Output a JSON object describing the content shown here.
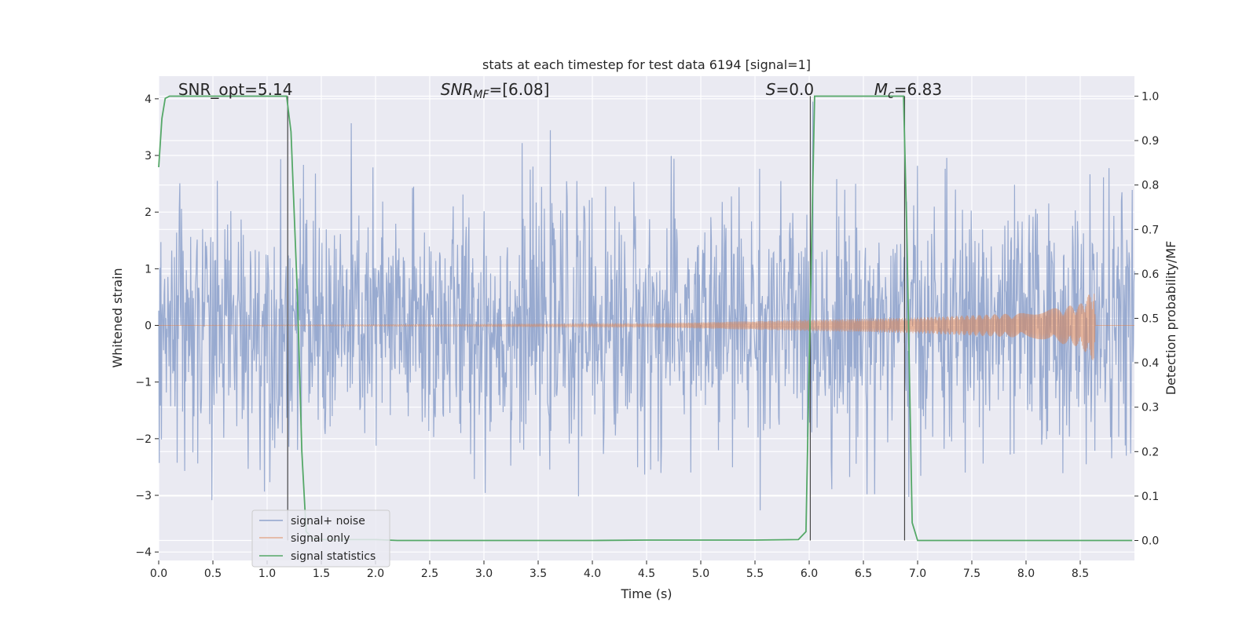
{
  "chart_data": {
    "type": "line",
    "title": "stats at each timestep for test data 6194 [signal=1]",
    "xlabel": "Time (s)",
    "ylabel": "Whitened strain",
    "ylabel_right": "Detection probability/MF",
    "xlim": [
      0.0,
      9.0
    ],
    "ylim": [
      -4.15,
      4.4
    ],
    "ylim_right": [
      -0.045,
      1.045
    ],
    "x_ticks": [
      "0.0",
      "0.5",
      "1.0",
      "1.5",
      "2.0",
      "2.5",
      "3.0",
      "3.5",
      "4.0",
      "4.5",
      "5.0",
      "5.5",
      "6.0",
      "6.5",
      "7.0",
      "7.5",
      "8.0",
      "8.5"
    ],
    "y_ticks": [
      "4",
      "3",
      "2",
      "1",
      "0",
      "−1",
      "−2",
      "−3",
      "−4"
    ],
    "y_ticks_right": [
      "1.0",
      "0.9",
      "0.8",
      "0.7",
      "0.6",
      "0.5",
      "0.4",
      "0.3",
      "0.2",
      "0.1",
      "0.0"
    ],
    "annotations": [
      {
        "label": "SNR_opt=5.14",
        "x": 0.18,
        "y": 4.12
      },
      {
        "label": "SNR_MF=[6.08]",
        "x": 2.6,
        "y": 4.12
      },
      {
        "label": "S=0.0",
        "x": 5.6,
        "y": 4.12
      },
      {
        "label": "M_c=6.83",
        "x": 6.6,
        "y": 4.12
      }
    ],
    "vertical_lines": [
      1.19,
      6.01,
      6.88
    ],
    "series": [
      {
        "name": "signal+ noise",
        "color": "#8fa3cc",
        "description": "whitened noisy strain, ~N(0,1), sampled densely over 0–9 s",
        "amplitude_typical": 1.0
      },
      {
        "name": "signal only",
        "color": "#dd8452",
        "description": "chirp waveform growing from ~0.05 amplitude at 4.5 s to ~0.65 at 8.63 s, zero afterward",
        "envelope": {
          "x": [
            0.0,
            4.5,
            6.0,
            7.0,
            8.0,
            8.5,
            8.63,
            8.64
          ],
          "amplitude": [
            0.0,
            0.03,
            0.1,
            0.14,
            0.22,
            0.38,
            0.65,
            0.0
          ]
        }
      },
      {
        "name": "signal statistics",
        "color": "#55a868",
        "axis": "right",
        "x": [
          0.0,
          0.03,
          0.06,
          0.1,
          0.5,
          1.0,
          1.18,
          1.22,
          1.28,
          1.32,
          1.36,
          1.42,
          1.5,
          2.0,
          2.2,
          3.0,
          4.0,
          4.5,
          5.0,
          5.5,
          5.9,
          5.97,
          6.0,
          6.05,
          6.5,
          6.87,
          6.9,
          6.95,
          7.0,
          7.5,
          8.0,
          8.5,
          8.98
        ],
        "y": [
          0.84,
          0.95,
          0.995,
          1.0,
          1.0,
          1.0,
          1.0,
          0.92,
          0.55,
          0.2,
          0.02,
          0.005,
          0.002,
          0.002,
          0.0,
          0.0,
          0.0,
          0.001,
          0.001,
          0.001,
          0.002,
          0.02,
          0.4,
          1.0,
          1.0,
          1.0,
          0.7,
          0.04,
          0.0,
          0.0,
          0.0,
          0.0,
          0.0
        ]
      }
    ],
    "legend": {
      "position": "lower-left",
      "entries": [
        "signal+ noise",
        "signal only",
        "signal statistics"
      ]
    },
    "grid": true
  }
}
